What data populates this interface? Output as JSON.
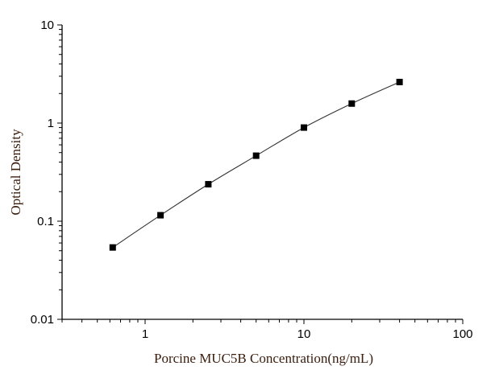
{
  "chart_data": {
    "type": "scatter",
    "title": "",
    "xlabel": "Porcine MUC5B Concentration(ng/mL)",
    "ylabel": "Optical Density",
    "x_scale": "log",
    "y_scale": "log",
    "xlim": [
      0.3,
      100
    ],
    "ylim": [
      0.01,
      10
    ],
    "x_ticks": [
      {
        "value": 1,
        "label": "1"
      },
      {
        "value": 10,
        "label": "10"
      },
      {
        "value": 100,
        "label": "100"
      }
    ],
    "y_ticks": [
      {
        "value": 0.01,
        "label": "0.01"
      },
      {
        "value": 0.1,
        "label": "0.1"
      },
      {
        "value": 1,
        "label": "1"
      },
      {
        "value": 10,
        "label": "10"
      }
    ],
    "grid": false,
    "marker": "square",
    "fit_line": true,
    "colors": {
      "marker": "#000000",
      "line": "#333333",
      "axis_title": "#3a1c0c"
    },
    "series": [
      {
        "x": [
          0.625,
          1.25,
          2.5,
          5,
          10,
          20,
          40
        ],
        "y": [
          0.054,
          0.115,
          0.238,
          0.465,
          0.9,
          1.58,
          2.62
        ]
      }
    ]
  }
}
